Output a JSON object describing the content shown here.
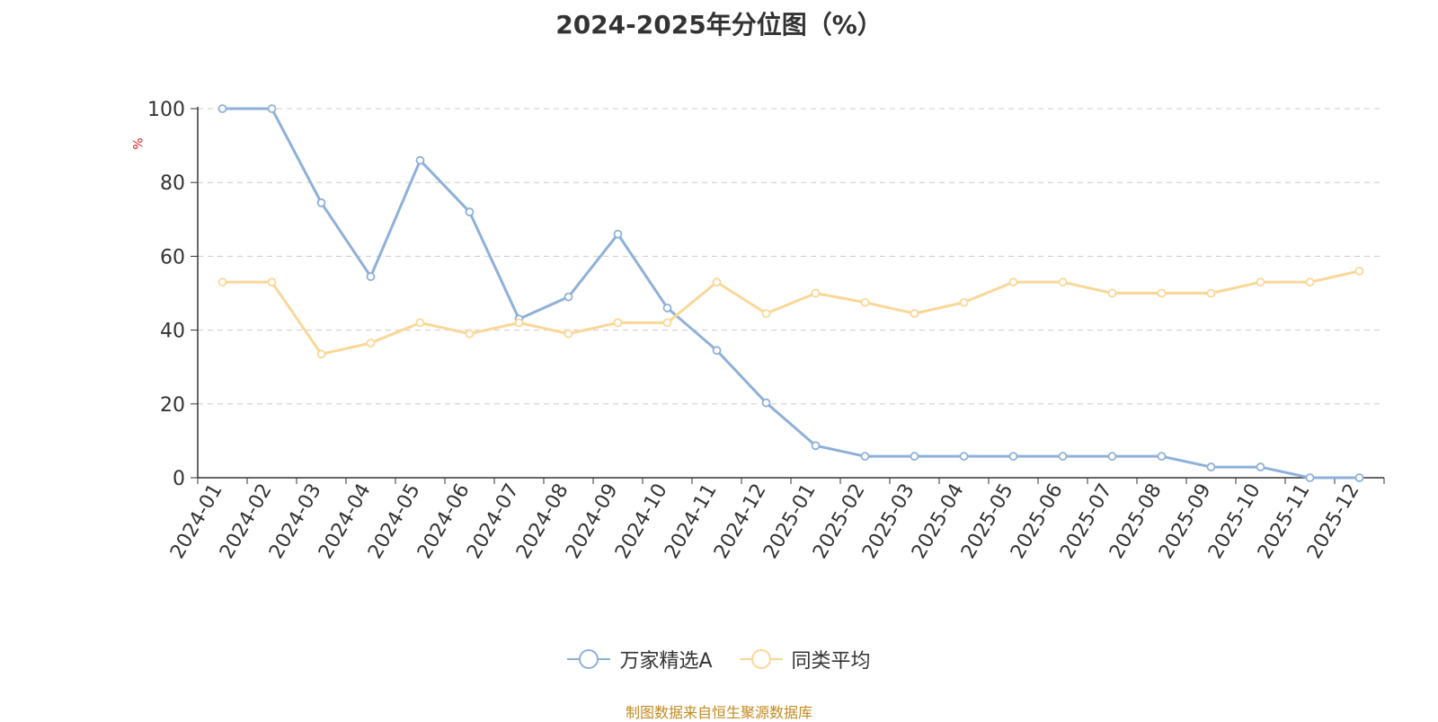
{
  "chart_data": {
    "type": "line",
    "title": "2024-2025年分位图（%）",
    "ylabel": "%",
    "ylim": [
      0,
      100
    ],
    "yticks": [
      0,
      20,
      40,
      60,
      80,
      100
    ],
    "grid": true,
    "legend_position": "bottom",
    "categories": [
      "2024-01",
      "2024-02",
      "2024-03",
      "2024-04",
      "2024-05",
      "2024-06",
      "2024-07",
      "2024-08",
      "2024-09",
      "2024-10",
      "2024-11",
      "2024-12",
      "2025-01",
      "2025-02",
      "2025-03",
      "2025-04",
      "2025-05",
      "2025-06",
      "2025-07",
      "2025-08",
      "2025-09",
      "2025-10",
      "2025-11",
      "2025-12"
    ],
    "series": [
      {
        "name": "万家精选A",
        "color": "#8eb0d9",
        "values": [
          100,
          100,
          74.5,
          54.5,
          86,
          72,
          43,
          49,
          66,
          46,
          34.5,
          20.3,
          8.7,
          5.8,
          5.8,
          5.8,
          5.8,
          5.8,
          5.8,
          5.8,
          2.9,
          2.9,
          0,
          0
        ]
      },
      {
        "name": "同类平均",
        "color": "#fad797",
        "values": [
          53,
          53,
          33.5,
          36.5,
          42,
          39,
          42,
          39,
          42,
          42,
          53,
          44.5,
          50,
          47.5,
          44.5,
          47.5,
          53,
          53,
          50,
          50,
          50,
          53,
          53,
          56
        ]
      }
    ]
  },
  "footer": {
    "source": "制图数据来自恒生聚源数据库"
  }
}
